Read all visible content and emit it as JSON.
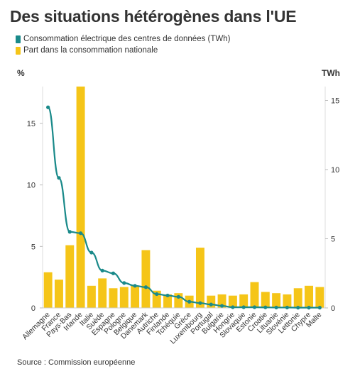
{
  "title": "Des situations hétérogènes dans l'UE",
  "source": "Source : Commission européenne",
  "colors": {
    "line": "#1a8a8a",
    "bar": "#f5c518",
    "grid": "#dddddd"
  },
  "chart_data": {
    "type": "bar+line",
    "categories": [
      "Allemagne",
      "France",
      "Pays-Bas",
      "Irlande",
      "Italie",
      "Suède",
      "Espagne",
      "Pologne",
      "Belgique",
      "Danemark",
      "Autriche",
      "Finlande",
      "Tchéquie",
      "Grèce",
      "Luxembourg",
      "Portugal",
      "Bulgarie",
      "Hongrie",
      "Slovaquie",
      "Estonie",
      "Croatie",
      "Lituanie",
      "Slovénie",
      "Lettonie",
      "Chypre",
      "Malte"
    ],
    "left_axis": {
      "label": "%",
      "ticks": [
        0,
        5,
        10,
        15
      ],
      "ylim": [
        0,
        18
      ]
    },
    "right_axis": {
      "label": "TWh",
      "ticks": [
        0,
        5,
        10,
        15
      ],
      "ylim": [
        0,
        16
      ]
    },
    "series": [
      {
        "name": "Consommation électrique des centres de données (TWh)",
        "type": "line",
        "axis": "right",
        "values": [
          14.5,
          9.4,
          5.5,
          5.4,
          4.0,
          2.7,
          2.5,
          1.8,
          1.6,
          1.5,
          1.0,
          0.9,
          0.8,
          0.45,
          0.35,
          0.25,
          0.15,
          0.05,
          0.05,
          0.05,
          0.04,
          0.03,
          0.03,
          0.02,
          0.02,
          0.02
        ]
      },
      {
        "name": "Part dans la consommation nationale",
        "type": "bar",
        "axis": "left",
        "values": [
          2.9,
          2.3,
          5.1,
          18.0,
          1.8,
          2.4,
          1.6,
          1.7,
          1.8,
          4.7,
          1.4,
          1.1,
          1.2,
          1.0,
          4.9,
          1.0,
          1.1,
          1.0,
          1.1,
          2.1,
          1.3,
          1.2,
          1.1,
          1.6,
          1.8,
          1.7
        ]
      }
    ],
    "grid": true,
    "legend": "top-left"
  }
}
